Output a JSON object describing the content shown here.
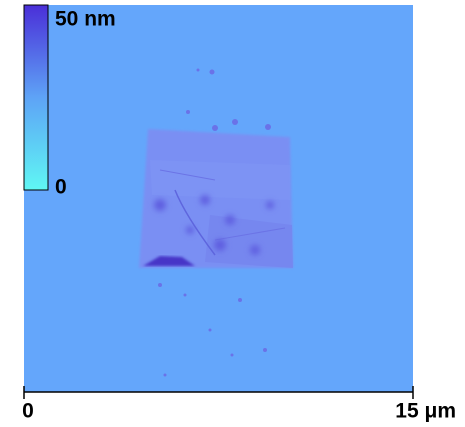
{
  "colorbar": {
    "max_label": "50 nm",
    "min_label": "0"
  },
  "scale": {
    "start_label": "0",
    "end_label": "15 μm"
  }
}
